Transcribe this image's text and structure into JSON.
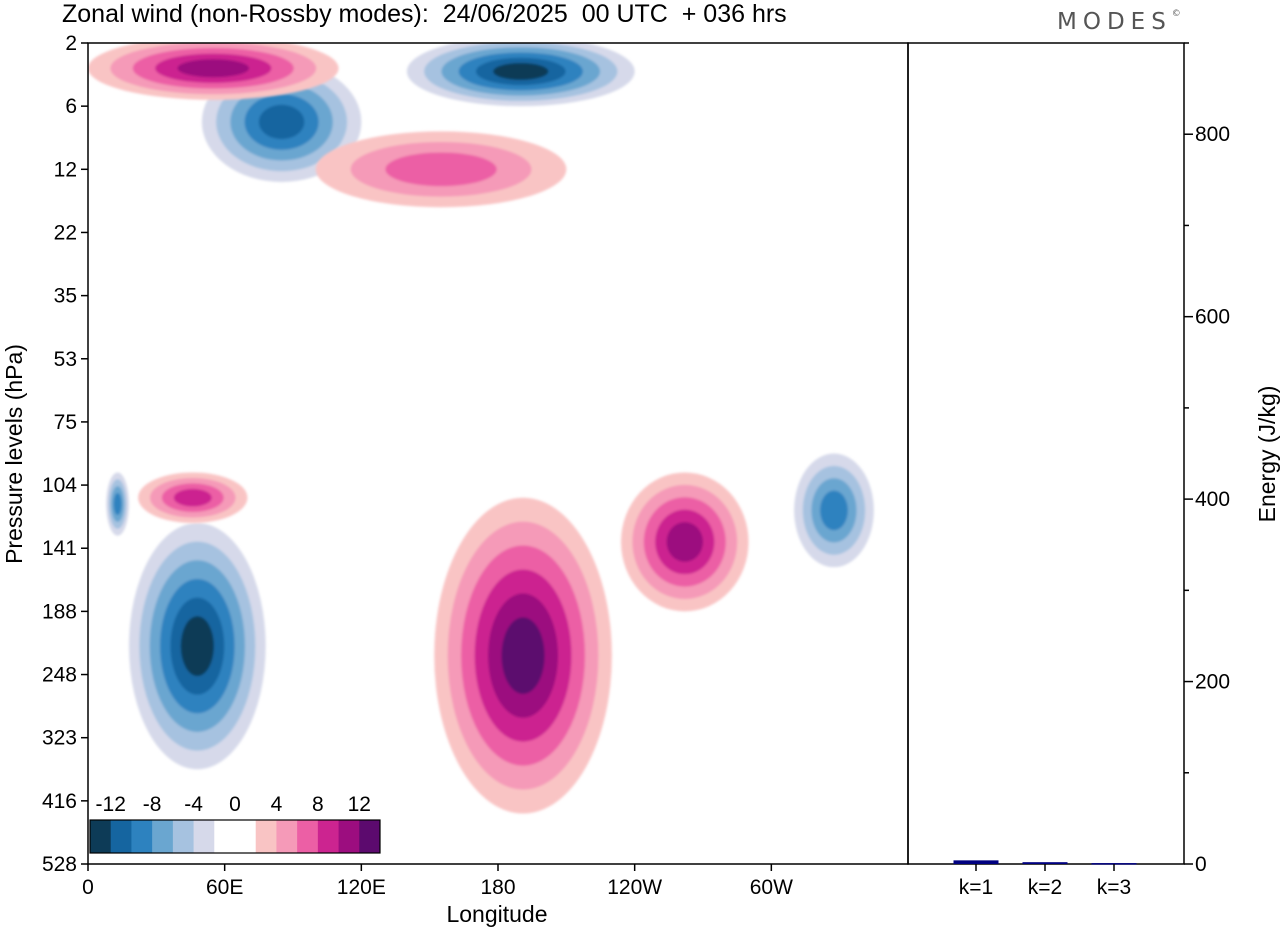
{
  "header": {
    "title": "Zonal wind (non-Rossby modes):  24/06/2025  00 UTC  + 036 hrs",
    "brand": "MODES",
    "brand_mark": "©"
  },
  "chart_data": [
    {
      "type": "heatmap",
      "title": "Zonal wind (non-Rossby modes):  24/06/2025  00 UTC  + 036 hrs",
      "xlabel": "Longitude",
      "ylabel": "Pressure levels (hPa)",
      "x_ticks": [
        "0",
        "60E",
        "120E",
        "180",
        "120W",
        "60W"
      ],
      "x_tick_positions_deg": [
        0,
        60,
        120,
        180,
        240,
        300
      ],
      "xlim": [
        0,
        360
      ],
      "y_ticks": [
        "2",
        "6",
        "12",
        "22",
        "35",
        "53",
        "75",
        "104",
        "141",
        "188",
        "248",
        "323",
        "416",
        "528"
      ],
      "colorbar": {
        "labels": [
          "-12",
          "-8",
          "-4",
          "0",
          "4",
          "8",
          "12"
        ],
        "colors": [
          "#0d3b57",
          "#1565a0",
          "#2d82bf",
          "#6aa6d0",
          "#a6c2e0",
          "#d6d9ea",
          "#ffffff",
          "#ffffff",
          "#f9c4c4",
          "#f59ab8",
          "#ec5fa5",
          "#cc2490",
          "#9c0d7f",
          "#5c0a6e"
        ]
      },
      "features": [
        {
          "kind": "negative",
          "lon": [
            8,
            18
          ],
          "level_index": [
            6.8,
            7.8
          ],
          "peak": -8
        },
        {
          "kind": "negative",
          "lon": [
            18,
            78
          ],
          "level_index": [
            7.6,
            11.5
          ],
          "peak": -12
        },
        {
          "kind": "negative",
          "lon": [
            50,
            120
          ],
          "level_index": [
            0.3,
            2.2
          ],
          "peak": -10
        },
        {
          "kind": "negative",
          "lon": [
            140,
            240
          ],
          "level_index": [
            -0.1,
            1.0
          ],
          "peak": -14
        },
        {
          "kind": "negative",
          "lon": [
            310,
            345
          ],
          "level_index": [
            6.5,
            8.3
          ],
          "peak": -8
        },
        {
          "kind": "positive",
          "lon": [
            22,
            70
          ],
          "level_index": [
            6.8,
            7.6
          ],
          "peak": 8
        },
        {
          "kind": "positive",
          "lon": [
            0,
            110
          ],
          "level_index": [
            -0.1,
            0.9
          ],
          "peak": 10
        },
        {
          "kind": "positive",
          "lon": [
            152,
            230
          ],
          "level_index": [
            7.2,
            12.2
          ],
          "peak": 14
        },
        {
          "kind": "positive",
          "lon": [
            234,
            290
          ],
          "level_index": [
            6.8,
            9.0
          ],
          "peak": 10
        },
        {
          "kind": "positive",
          "lon": [
            100,
            210
          ],
          "level_index": [
            1.4,
            2.6
          ],
          "peak": 6
        }
      ]
    },
    {
      "type": "bar",
      "categories": [
        "k=1",
        "k=2",
        "k=3"
      ],
      "values": [
        4,
        2,
        1
      ],
      "ylabel": "Energy (J/kg)",
      "ylim": [
        0,
        900
      ],
      "y_ticks": [
        0,
        200,
        400,
        600,
        800
      ],
      "bar_color": "#000080"
    }
  ]
}
